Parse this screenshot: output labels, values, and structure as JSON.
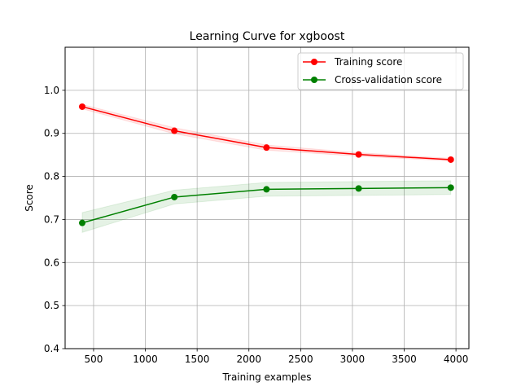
{
  "chart_data": {
    "type": "line",
    "title": "Learning Curve for xgboost",
    "xlabel": "Training examples",
    "ylabel": "Score",
    "xlim": [
      225,
      4125
    ],
    "ylim": [
      0.4,
      1.1
    ],
    "xticks": [
      500,
      1000,
      1500,
      2000,
      2500,
      3000,
      3500,
      4000
    ],
    "yticks": [
      0.4,
      0.5,
      0.6,
      0.7,
      0.8,
      0.9,
      1.0
    ],
    "xtick_labels": [
      "500",
      "1000",
      "1500",
      "2000",
      "2500",
      "3000",
      "3500",
      "4000"
    ],
    "ytick_labels": [
      "0.4",
      "0.5",
      "0.6",
      "0.7",
      "0.8",
      "0.9",
      "1.0"
    ],
    "grid": true,
    "legend_position": "top-right",
    "x": [
      390,
      1280,
      2170,
      3060,
      3950
    ],
    "series": [
      {
        "name": "Training score",
        "color": "#ff0000",
        "values": [
          0.962,
          0.906,
          0.867,
          0.851,
          0.839
        ],
        "band_lower": [
          0.957,
          0.899,
          0.861,
          0.847,
          0.836
        ],
        "band_upper": [
          0.967,
          0.913,
          0.873,
          0.855,
          0.842
        ]
      },
      {
        "name": "Cross-validation score",
        "color": "#008000",
        "values": [
          0.692,
          0.752,
          0.77,
          0.772,
          0.774
        ],
        "band_lower": [
          0.67,
          0.736,
          0.754,
          0.756,
          0.758
        ],
        "band_upper": [
          0.716,
          0.768,
          0.786,
          0.788,
          0.79
        ]
      }
    ]
  }
}
